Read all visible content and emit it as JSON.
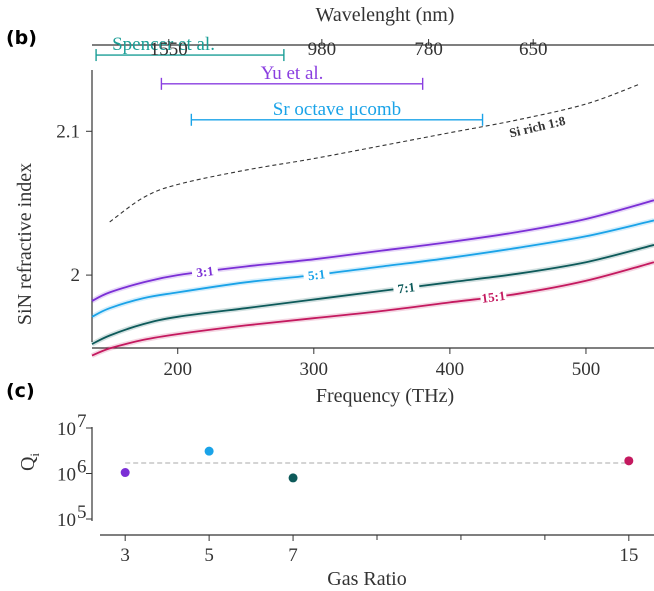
{
  "panel_b_label": "(b)",
  "panel_c_label": "(c)",
  "colors": {
    "3:1": "#7b2fd6",
    "5:1": "#1aa3e8",
    "7:1": "#0d5a5a",
    "15:1": "#c4195f",
    "si_rich": "#333333",
    "spencer": "#1a9e96",
    "yu": "#8a3ee0",
    "sr": "#1aa3e8",
    "reference": "#bbbbbb"
  },
  "chart_data": [
    {
      "type": "line",
      "panel": "(b)",
      "xlabel": "Frequency (THz)",
      "ylabel": "SiN refractive index",
      "top_axis_label": "Wavelenght (nm)",
      "xlim": [
        137,
        550
      ],
      "ylim": [
        1.95,
        2.16
      ],
      "x_ticks": [
        200,
        300,
        400,
        500
      ],
      "y_ticks": [
        2,
        2.1
      ],
      "y_tick_labels": [
        "2",
        "2.1"
      ],
      "top_ticks": [
        {
          "label": "1550",
          "nm": 1550
        },
        {
          "label": "980",
          "nm": 980
        },
        {
          "label": "780",
          "nm": 780
        },
        {
          "label": "650",
          "nm": 650
        }
      ],
      "series": [
        {
          "name": "3:1",
          "color_key": "3:1",
          "label_x": 220,
          "x": [
            137,
            150,
            175,
            200,
            250,
            300,
            350,
            400,
            450,
            500,
            550
          ],
          "y": [
            1.982,
            1.988,
            1.995,
            2.0,
            2.006,
            2.011,
            2.017,
            2.023,
            2.03,
            2.039,
            2.052
          ]
        },
        {
          "name": "5:1",
          "color_key": "5:1",
          "label_x": 302,
          "x": [
            137,
            150,
            175,
            200,
            250,
            300,
            350,
            400,
            450,
            500,
            550
          ],
          "y": [
            1.971,
            1.977,
            1.984,
            1.988,
            1.995,
            2.0,
            2.006,
            2.012,
            2.019,
            2.027,
            2.038
          ]
        },
        {
          "name": "7:1",
          "color_key": "7:1",
          "label_x": 368,
          "x": [
            137,
            150,
            175,
            200,
            250,
            300,
            350,
            400,
            450,
            500,
            550
          ],
          "y": [
            1.952,
            1.958,
            1.966,
            1.971,
            1.977,
            1.983,
            1.989,
            1.995,
            2.001,
            2.009,
            2.021
          ]
        },
        {
          "name": "15:1",
          "color_key": "15:1",
          "label_x": 432,
          "x": [
            137,
            150,
            175,
            200,
            250,
            300,
            350,
            400,
            450,
            500,
            550
          ],
          "y": [
            1.944,
            1.949,
            1.955,
            1.959,
            1.965,
            1.97,
            1.975,
            1.981,
            1.987,
            1.996,
            2.009
          ]
        },
        {
          "name": "Si rich 1:8",
          "color_key": "si_rich",
          "dashed": true,
          "label_x": 465,
          "x": [
            150,
            175,
            200,
            250,
            300,
            350,
            400,
            450,
            500,
            540
          ],
          "y": [
            2.037,
            2.054,
            2.063,
            2.073,
            2.081,
            2.09,
            2.099,
            2.108,
            2.119,
            2.133
          ]
        }
      ],
      "ranges": [
        {
          "name": "Spencer et al.",
          "color_key": "spencer",
          "x": [
            140,
            278
          ],
          "y": 2.153
        },
        {
          "name": "Yu et al.",
          "color_key": "yu",
          "x": [
            188,
            380
          ],
          "y": 2.133
        },
        {
          "name": "Sr octave μcomb",
          "color_key": "sr",
          "x": [
            210,
            424
          ],
          "y": 2.108
        }
      ]
    },
    {
      "type": "scatter",
      "panel": "(c)",
      "xlabel": "Gas Ratio",
      "ylabel": "Q",
      "ylabel_sub": "i",
      "x_ticks": [
        3,
        5,
        7,
        15
      ],
      "x_minor_ticks": [
        9,
        11,
        13
      ],
      "xlim": [
        2.4,
        15.6
      ],
      "y_log": true,
      "ylim": [
        100000,
        10000000
      ],
      "y_ticks": [
        {
          "base": "10",
          "exp": "7",
          "value": 10000000
        },
        {
          "base": "10",
          "exp": "6",
          "value": 1000000
        },
        {
          "base": "10",
          "exp": "5",
          "value": 100000
        }
      ],
      "reference_line": 1700000,
      "points": [
        {
          "x": 3,
          "y": 1050000,
          "color_key": "3:1"
        },
        {
          "x": 5,
          "y": 3100000,
          "color_key": "5:1"
        },
        {
          "x": 7,
          "y": 800000,
          "color_key": "7:1"
        },
        {
          "x": 15,
          "y": 1900000,
          "color_key": "15:1"
        }
      ]
    }
  ]
}
